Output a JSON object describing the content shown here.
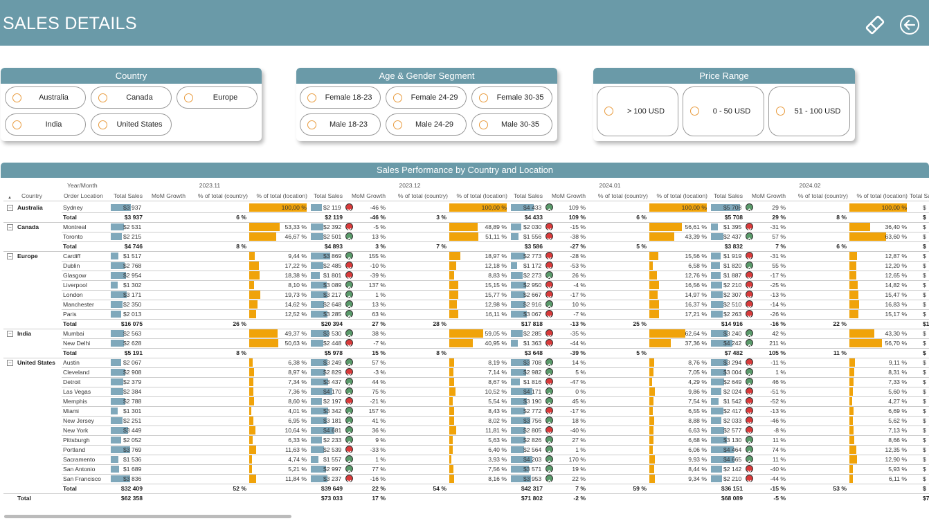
{
  "header": {
    "title": "SALES DETAILS"
  },
  "slicers": [
    {
      "title": "Country",
      "items": [
        "Australia",
        "Canada",
        "Europe",
        "India",
        "United States"
      ]
    },
    {
      "title": "Age & Gender Segment",
      "items": [
        "Female 18-23",
        "Female 24-29",
        "Female 30-35",
        "Male 18-23",
        "Male 24-29",
        "Male 30-35"
      ]
    },
    {
      "title": "Price Range",
      "items": [
        "> 100 USD",
        "0 - 50 USD",
        "51 - 100 USD"
      ]
    }
  ],
  "table": {
    "title": "Sales Performance by Country and Location",
    "year_month_label": "Year/Month",
    "country_label": "Country",
    "location_label": "Order Location",
    "total_label": "Total",
    "sort_indicator": "▲",
    "measures": [
      "Total Sales",
      "MoM Growth",
      "% of total (country)",
      "% of total (location)"
    ],
    "months": [
      "2023.11",
      "2023.12",
      "2024.01",
      "2024.02"
    ],
    "groups": [
      {
        "country": "Australia",
        "rows": [
          [
            "Sydney",
            [
              "$3 937",
              "",
              "",
              "100,00 %",
              0
            ],
            [
              "$2 119",
              "-46 %",
              "",
              "100,00 %",
              -1
            ],
            [
              "$4 433",
              "109 %",
              "",
              "100,00 %",
              1
            ],
            [
              "$5 708",
              "29 %",
              "",
              "100,00 %",
              1
            ],
            [
              "$"
            ]
          ]
        ],
        "total": [
          [
            "$3 937",
            "",
            "6 %"
          ],
          [
            "$2 119",
            "-46 %",
            "3 %"
          ],
          [
            "$4 433",
            "109 %",
            "6 %"
          ],
          [
            "$5 708",
            "29 %",
            "8 %"
          ],
          [
            "$"
          ]
        ]
      },
      {
        "country": "Canada",
        "rows": [
          [
            "Montreal",
            [
              "$2 531",
              "",
              "",
              "53,33 %",
              0
            ],
            [
              "$2 392",
              "-5 %",
              "",
              "48,89 %",
              -1
            ],
            [
              "$2 030",
              "-15 %",
              "",
              "56,61 %",
              -1
            ],
            [
              "$1 395",
              "-31 %",
              "",
              "36,40 %",
              -1
            ],
            [
              "$"
            ]
          ],
          [
            "Toronto",
            [
              "$2 215",
              "",
              "",
              "46,67 %",
              0
            ],
            [
              "$2 501",
              "13 %",
              "",
              "51,11 %",
              1
            ],
            [
              "$1 556",
              "-38 %",
              "",
              "43,39 %",
              -1
            ],
            [
              "$2 437",
              "57 %",
              "",
              "63,60 %",
              1
            ],
            [
              "$"
            ]
          ]
        ],
        "total": [
          [
            "$4 746",
            "",
            "8 %"
          ],
          [
            "$4 893",
            "3 %",
            "7 %"
          ],
          [
            "$3 586",
            "-27 %",
            "5 %"
          ],
          [
            "$3 832",
            "7 %",
            "6 %"
          ],
          [
            "$"
          ]
        ]
      },
      {
        "country": "Europe",
        "rows": [
          [
            "Cardiff",
            [
              "$1 517",
              "",
              "",
              "9,44 %",
              0
            ],
            [
              "$3 869",
              "155 %",
              "",
              "18,97 %",
              1
            ],
            [
              "$2 773",
              "-28 %",
              "",
              "15,56 %",
              -1
            ],
            [
              "$1 919",
              "-31 %",
              "",
              "12,87 %",
              -1
            ],
            [
              "$"
            ]
          ],
          [
            "Dublin",
            [
              "$2 768",
              "",
              "",
              "17,22 %",
              0
            ],
            [
              "$2 485",
              "-10 %",
              "",
              "12,18 %",
              -1
            ],
            [
              "$1 172",
              "-53 %",
              "",
              "6,58 %",
              -1
            ],
            [
              "$1 820",
              "55 %",
              "",
              "12,20 %",
              1
            ],
            [
              "$"
            ]
          ],
          [
            "Glasgow",
            [
              "$2 954",
              "",
              "",
              "18,38 %",
              0
            ],
            [
              "$1 801",
              "-39 %",
              "",
              "8,83 %",
              -1
            ],
            [
              "$2 273",
              "26 %",
              "",
              "12,76 %",
              1
            ],
            [
              "$1 887",
              "-17 %",
              "",
              "12,65 %",
              -1
            ],
            [
              "$"
            ]
          ],
          [
            "Liverpool",
            [
              "$1 302",
              "",
              "",
              "8,10 %",
              0
            ],
            [
              "$3 089",
              "137 %",
              "",
              "15,15 %",
              1
            ],
            [
              "$2 950",
              "-4 %",
              "",
              "16,56 %",
              -1
            ],
            [
              "$2 210",
              "-25 %",
              "",
              "14,82 %",
              -1
            ],
            [
              "$"
            ]
          ],
          [
            "London",
            [
              "$3 171",
              "",
              "",
              "19,73 %",
              0
            ],
            [
              "$3 217",
              "1 %",
              "",
              "15,77 %",
              1
            ],
            [
              "$2 667",
              "-17 %",
              "",
              "14,97 %",
              -1
            ],
            [
              "$2 307",
              "-13 %",
              "",
              "15,47 %",
              -1
            ],
            [
              "$"
            ]
          ],
          [
            "Manchester",
            [
              "$2 350",
              "",
              "",
              "14,62 %",
              0
            ],
            [
              "$2 648",
              "13 %",
              "",
              "12,98 %",
              1
            ],
            [
              "$2 916",
              "10 %",
              "",
              "16,37 %",
              1
            ],
            [
              "$2 510",
              "-14 %",
              "",
              "16,83 %",
              -1
            ],
            [
              "$"
            ]
          ],
          [
            "Paris",
            [
              "$2 013",
              "",
              "",
              "12,52 %",
              0
            ],
            [
              "$3 285",
              "63 %",
              "",
              "16,11 %",
              1
            ],
            [
              "$3 067",
              "-7 %",
              "",
              "17,21 %",
              -1
            ],
            [
              "$2 263",
              "-26 %",
              "",
              "15,17 %",
              -1
            ],
            [
              "$"
            ]
          ]
        ],
        "total": [
          [
            "$16 075",
            "",
            "26 %"
          ],
          [
            "$20 394",
            "27 %",
            "28 %"
          ],
          [
            "$17 818",
            "-13 %",
            "25 %"
          ],
          [
            "$14 916",
            "-16 %",
            "22 %"
          ],
          [
            "$1"
          ]
        ]
      },
      {
        "country": "India",
        "rows": [
          [
            "Mumbai",
            [
              "$2 563",
              "",
              "",
              "49,37 %",
              0
            ],
            [
              "$3 530",
              "38 %",
              "",
              "59,05 %",
              1
            ],
            [
              "$2 285",
              "-35 %",
              "",
              "62,64 %",
              -1
            ],
            [
              "$3 240",
              "42 %",
              "",
              "43,30 %",
              1
            ],
            [
              "$"
            ]
          ],
          [
            "New Delhi",
            [
              "$2 628",
              "",
              "",
              "50,63 %",
              0
            ],
            [
              "$2 448",
              "-7 %",
              "",
              "40,95 %",
              -1
            ],
            [
              "$1 363",
              "-44 %",
              "",
              "37,36 %",
              -1
            ],
            [
              "$4 242",
              "211 %",
              "",
              "56,70 %",
              1
            ],
            [
              "$"
            ]
          ]
        ],
        "total": [
          [
            "$5 191",
            "",
            "8 %"
          ],
          [
            "$5 978",
            "15 %",
            "8 %"
          ],
          [
            "$3 648",
            "-39 %",
            "5 %"
          ],
          [
            "$7 482",
            "105 %",
            "11 %"
          ],
          [
            "$"
          ]
        ]
      },
      {
        "country": "United States",
        "rows": [
          [
            "Austin",
            [
              "$2 067",
              "",
              "",
              "6,38 %",
              0
            ],
            [
              "$3 249",
              "57 %",
              "",
              "8,19 %",
              1
            ],
            [
              "$3 708",
              "14 %",
              "",
              "8,76 %",
              1
            ],
            [
              "$3 294",
              "-11 %",
              "",
              "9,11 %",
              -1
            ],
            [
              "$"
            ]
          ],
          [
            "Cleveland",
            [
              "$2 908",
              "",
              "",
              "8,97 %",
              0
            ],
            [
              "$2 829",
              "-3 %",
              "",
              "7,14 %",
              -1
            ],
            [
              "$2 982",
              "5 %",
              "",
              "7,05 %",
              1
            ],
            [
              "$3 004",
              "1 %",
              "",
              "8,31 %",
              1
            ],
            [
              "$"
            ]
          ],
          [
            "Detroit",
            [
              "$2 379",
              "",
              "",
              "7,34 %",
              0
            ],
            [
              "$3 437",
              "44 %",
              "",
              "8,67 %",
              1
            ],
            [
              "$1 816",
              "-47 %",
              "",
              "4,29 %",
              -1
            ],
            [
              "$2 649",
              "46 %",
              "",
              "7,33 %",
              1
            ],
            [
              "$"
            ]
          ],
          [
            "Las Vegas",
            [
              "$2 384",
              "",
              "",
              "7,36 %",
              0
            ],
            [
              "$4 170",
              "75 %",
              "",
              "10,52 %",
              1
            ],
            [
              "$4 171",
              "0 %",
              "",
              "9,86 %",
              1
            ],
            [
              "$2 024",
              "-51 %",
              "",
              "5,60 %",
              -1
            ],
            [
              "$"
            ]
          ],
          [
            "Memphis",
            [
              "$2 788",
              "",
              "",
              "8,60 %",
              0
            ],
            [
              "$2 197",
              "-21 %",
              "",
              "5,54 %",
              -1
            ],
            [
              "$3 190",
              "45 %",
              "",
              "7,54 %",
              1
            ],
            [
              "$1 542",
              "-52 %",
              "",
              "4,27 %",
              -1
            ],
            [
              "$"
            ]
          ],
          [
            "Miami",
            [
              "$1 301",
              "",
              "",
              "4,01 %",
              0
            ],
            [
              "$3 342",
              "157 %",
              "",
              "8,43 %",
              1
            ],
            [
              "$2 772",
              "-17 %",
              "",
              "6,55 %",
              -1
            ],
            [
              "$2 417",
              "-13 %",
              "",
              "6,69 %",
              -1
            ],
            [
              "$"
            ]
          ],
          [
            "New Jersey",
            [
              "$2 251",
              "",
              "",
              "6,95 %",
              0
            ],
            [
              "$3 181",
              "41 %",
              "",
              "8,02 %",
              1
            ],
            [
              "$3 756",
              "18 %",
              "",
              "8,88 %",
              1
            ],
            [
              "$2 033",
              "-46 %",
              "",
              "5,62 %",
              -1
            ],
            [
              "$"
            ]
          ],
          [
            "New York",
            [
              "$3 449",
              "",
              "",
              "10,64 %",
              0
            ],
            [
              "$4 681",
              "36 %",
              "",
              "11,81 %",
              1
            ],
            [
              "$2 805",
              "-40 %",
              "",
              "6,63 %",
              -1
            ],
            [
              "$2 577",
              "-8 %",
              "",
              "7,13 %",
              -1
            ],
            [
              "$"
            ]
          ],
          [
            "Pittsburgh",
            [
              "$2 052",
              "",
              "",
              "6,33 %",
              0
            ],
            [
              "$2 233",
              "9 %",
              "",
              "5,63 %",
              1
            ],
            [
              "$2 826",
              "27 %",
              "",
              "6,68 %",
              1
            ],
            [
              "$3 130",
              "11 %",
              "",
              "8,66 %",
              1
            ],
            [
              "$"
            ]
          ],
          [
            "Portland",
            [
              "$3 769",
              "",
              "",
              "11,63 %",
              0
            ],
            [
              "$2 539",
              "-33 %",
              "",
              "6,40 %",
              -1
            ],
            [
              "$2 564",
              "1 %",
              "",
              "6,06 %",
              1
            ],
            [
              "$4 464",
              "74 %",
              "",
              "12,35 %",
              1
            ],
            [
              "$"
            ]
          ],
          [
            "Sacramento",
            [
              "$1 536",
              "",
              "",
              "4,74 %",
              0
            ],
            [
              "$1 557",
              "1 %",
              "",
              "3,93 %",
              1
            ],
            [
              "$4 203",
              "170 %",
              "",
              "9,93 %",
              1
            ],
            [
              "$4 665",
              "11 %",
              "",
              "12,90 %",
              1
            ],
            [
              "$"
            ]
          ],
          [
            "San Antonio",
            [
              "$1 689",
              "",
              "",
              "5,21 %",
              0
            ],
            [
              "$2 997",
              "77 %",
              "",
              "7,56 %",
              1
            ],
            [
              "$3 571",
              "19 %",
              "",
              "8,44 %",
              1
            ],
            [
              "$2 142",
              "-40 %",
              "",
              "5,93 %",
              -1
            ],
            [
              "$"
            ]
          ],
          [
            "San Francisco",
            [
              "$3 836",
              "",
              "",
              "11,84 %",
              0
            ],
            [
              "$3 237",
              "-16 %",
              "",
              "8,16 %",
              -1
            ],
            [
              "$3 953",
              "22 %",
              "",
              "9,34 %",
              1
            ],
            [
              "$2 210",
              "-44 %",
              "",
              "6,11 %",
              -1
            ],
            [
              "$"
            ]
          ]
        ],
        "total": [
          [
            "$32 409",
            "",
            "52 %"
          ],
          [
            "$39 649",
            "22 %",
            "54 %"
          ],
          [
            "$42 317",
            "7 %",
            "59 %"
          ],
          [
            "$36 151",
            "-15 %",
            "53 %"
          ],
          [
            "$"
          ]
        ]
      }
    ],
    "grand_total": [
      [
        "$62 358",
        ""
      ],
      [
        "$73 033",
        "17 %"
      ],
      [
        "$71 802",
        "-2 %"
      ],
      [
        "$68 089",
        "-5 %"
      ],
      [
        "$7"
      ]
    ],
    "colors": {
      "sales_bar": "#7fa8bb",
      "location_bar": "#f0a30a",
      "up": "#5a9a6a",
      "down": "#d83a3a"
    }
  }
}
